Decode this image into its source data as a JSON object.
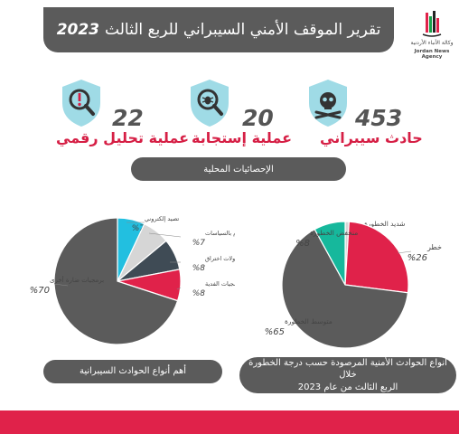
{
  "header": {
    "title": "تقرير الموقف الأمني السيبراني للربع الثالث",
    "year": "2023"
  },
  "logo": {
    "name_ar": "وكالة الأنباء الأردنية",
    "name_en": "Jordan News Agency"
  },
  "stats": [
    {
      "number": "453",
      "label": "حادث سيبراني",
      "icon": "shield-skull-icon"
    },
    {
      "number": "20",
      "label": "عملية إستجابة",
      "icon": "shield-bug-icon"
    },
    {
      "number": "22",
      "label": "عملية تحليل رقمي",
      "icon": "shield-alert-icon"
    }
  ],
  "section": {
    "title": "الإحصائيات المحلية"
  },
  "colors": {
    "dark": "#5b5b5b",
    "crimson": "#e0224a",
    "teal": "#16b89c",
    "cyan": "#22bfe0",
    "lightgray": "#d6d6d6",
    "slate": "#3f4b55",
    "shield": "#9fdbe6"
  },
  "chart_data": [
    {
      "type": "pie",
      "caption": "أنواع الحوادث الأمنية المرصودة حسب درجة الخطورة خلال الربع الثالث من عام 2023",
      "slices": [
        {
          "label": "شديد الخطورة",
          "value": 1,
          "display": "%1",
          "color": "#d6d6d6"
        },
        {
          "label": "خطر",
          "value": 26,
          "display": "%26",
          "color": "#e0224a"
        },
        {
          "label": "متوسط الخطورة",
          "value": 65,
          "display": "%65",
          "color": "#5b5b5b"
        },
        {
          "label": "منخفض الخطورة",
          "value": 8,
          "display": "%8",
          "color": "#16b89c"
        }
      ]
    },
    {
      "type": "pie",
      "caption": "أهم أنواع الحوادث السيبرانية",
      "slices": [
        {
          "label": "تصيد إلكتروني",
          "value": 7,
          "display": "%7",
          "color": "#22bfe0"
        },
        {
          "label": "عدم الالتزام بالسياسات",
          "value": 7,
          "display": "%7",
          "color": "#d6d6d6"
        },
        {
          "label": "محاولات اختراق",
          "value": 8,
          "display": "%8",
          "color": "#3f4b55"
        },
        {
          "label": "برمجيات الفدية",
          "value": 8,
          "display": "%8",
          "color": "#e0224a"
        },
        {
          "label": "برمجيات ضارة أخرى",
          "value": 70,
          "display": "%70",
          "color": "#5b5b5b"
        }
      ]
    }
  ]
}
